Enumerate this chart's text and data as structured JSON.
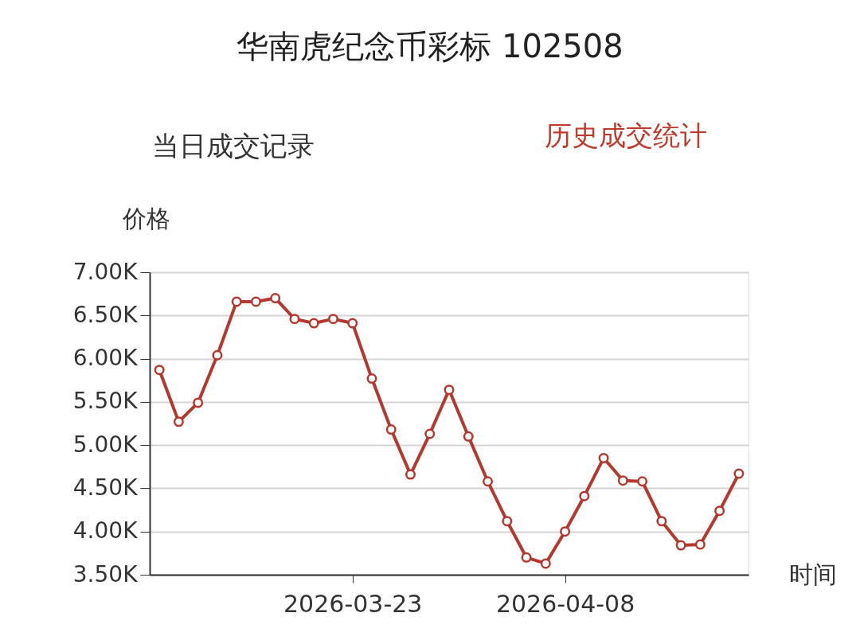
{
  "chart_data": {
    "type": "line",
    "title": "华南虎纪念币彩标 102508",
    "annotations": [
      "当日成交记录",
      "历史成交统计"
    ],
    "xlabel": "时间",
    "ylabel": "价格",
    "categories": [
      null,
      null,
      null,
      null,
      null,
      null,
      null,
      null,
      null,
      null,
      "2026-03-23",
      null,
      null,
      null,
      null,
      null,
      null,
      null,
      null,
      null,
      null,
      "2026-04-08",
      null,
      null,
      null,
      null,
      null,
      null,
      null,
      null,
      null
    ],
    "series": [
      {
        "color": "#b5382f",
        "values": [
          5870,
          5270,
          5490,
          6040,
          6660,
          6660,
          6700,
          6460,
          6410,
          6460,
          6410,
          5770,
          5180,
          4660,
          5130,
          5640,
          5100,
          4580,
          4120,
          3700,
          3630,
          4000,
          4410,
          4850,
          4590,
          4580,
          4120,
          3840,
          3850,
          4240,
          4670
        ]
      }
    ],
    "ylim": [
      3500,
      7000
    ],
    "yticks": [
      {
        "value": 3500,
        "label": "3.50K"
      },
      {
        "value": 4000,
        "label": "4.00K"
      },
      {
        "value": 4500,
        "label": "4.50K"
      },
      {
        "value": 5000,
        "label": "5.00K"
      },
      {
        "value": 5500,
        "label": "5.50K"
      },
      {
        "value": 6000,
        "label": "6.00K"
      },
      {
        "value": 6500,
        "label": "6.50K"
      },
      {
        "value": 7000,
        "label": "7.00K"
      }
    ],
    "grid": "y",
    "marker": "circle",
    "line_style": "solid"
  }
}
